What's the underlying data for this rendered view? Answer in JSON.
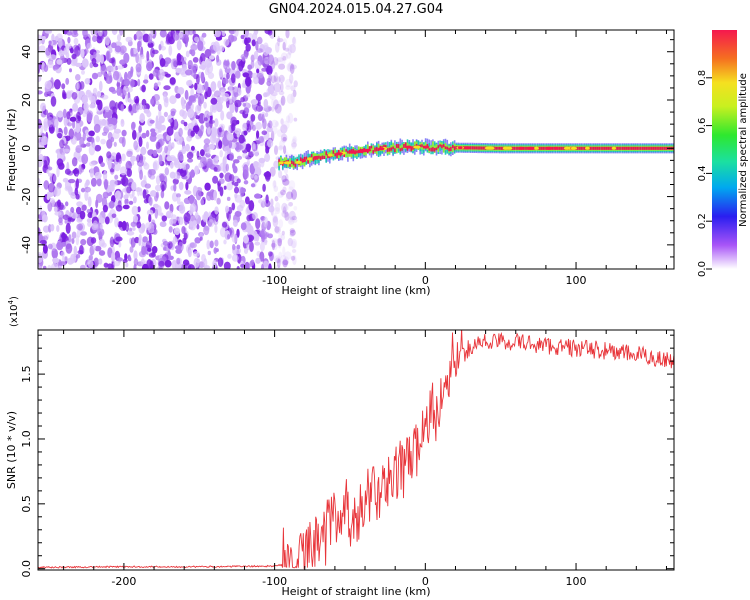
{
  "figure": {
    "title": "GN04.2024.015.04.27.G04"
  },
  "chart_data": [
    {
      "type": "heatmap",
      "xlabel": "Height of straight line (km)",
      "ylabel": "Frequency (Hz)",
      "xlim": [
        -257,
        165
      ],
      "ylim": [
        -50,
        49
      ],
      "xticks": [
        -200,
        -100,
        0,
        100
      ],
      "yticks": [
        -40,
        -20,
        0,
        20,
        40
      ],
      "xtick_labels": [
        "-200",
        "-100",
        "0",
        "100"
      ],
      "ytick_labels": [
        "-40",
        "-20",
        "0",
        "20",
        "40"
      ],
      "colorbar": {
        "label": "Normalized spectral amplitude",
        "range": [
          0,
          1
        ],
        "ticks": [
          0.0,
          0.2,
          0.4,
          0.6,
          0.8
        ],
        "tick_labels": [
          "0.0",
          "0.2",
          "0.4",
          "0.6",
          "0.8"
        ]
      },
      "noise_region": {
        "x": [
          -257,
          -90
        ],
        "typical_amplitude": 0.15
      },
      "signal_track": [
        {
          "x": -97,
          "freq": -6
        },
        {
          "x": -85,
          "freq": -6
        },
        {
          "x": -75,
          "freq": -4
        },
        {
          "x": -65,
          "freq": -3
        },
        {
          "x": -55,
          "freq": -2
        },
        {
          "x": -45,
          "freq": -1.5
        },
        {
          "x": -35,
          "freq": -0.5
        },
        {
          "x": -25,
          "freq": 0
        },
        {
          "x": -15,
          "freq": 0.5
        },
        {
          "x": 0,
          "freq": 0.5
        },
        {
          "x": 15,
          "freq": 0.3
        },
        {
          "x": 50,
          "freq": 0
        },
        {
          "x": 100,
          "freq": 0
        },
        {
          "x": 165,
          "freq": 0
        }
      ],
      "colors": {
        "noise": "#7a28e8",
        "track_core": "#e8174e",
        "track_edge": "#10c8b0"
      }
    },
    {
      "type": "line",
      "xlabel": "Height of straight line (km)",
      "ylabel": "SNR (10 * v/v)",
      "y_multiplier_label": "(x10",
      "y_multiplier_exp": "4",
      "y_multiplier_close": ")",
      "xlim": [
        -257,
        165
      ],
      "ylim": [
        -0.01,
        1.84
      ],
      "xticks": [
        -200,
        -100,
        0,
        100
      ],
      "yticks": [
        0.0,
        0.5,
        1.0,
        1.5
      ],
      "xtick_labels": [
        "-200",
        "-100",
        "0",
        "100"
      ],
      "ytick_labels": [
        "0.0",
        "0.5",
        "1.0",
        "1.5"
      ],
      "series": [
        {
          "color": "#e8353a",
          "x": [
            -257,
            -200,
            -150,
            -100,
            -90,
            -80,
            -70,
            -60,
            -50,
            -40,
            -30,
            -20,
            -10,
            0,
            10,
            20,
            30,
            40,
            60,
            80,
            100,
            120,
            140,
            165
          ],
          "y": [
            0.01,
            0.015,
            0.015,
            0.02,
            0.04,
            0.12,
            0.25,
            0.38,
            0.45,
            0.52,
            0.58,
            0.68,
            0.85,
            1.05,
            1.3,
            1.55,
            1.72,
            1.75,
            1.75,
            1.72,
            1.7,
            1.68,
            1.65,
            1.6
          ]
        }
      ]
    }
  ]
}
